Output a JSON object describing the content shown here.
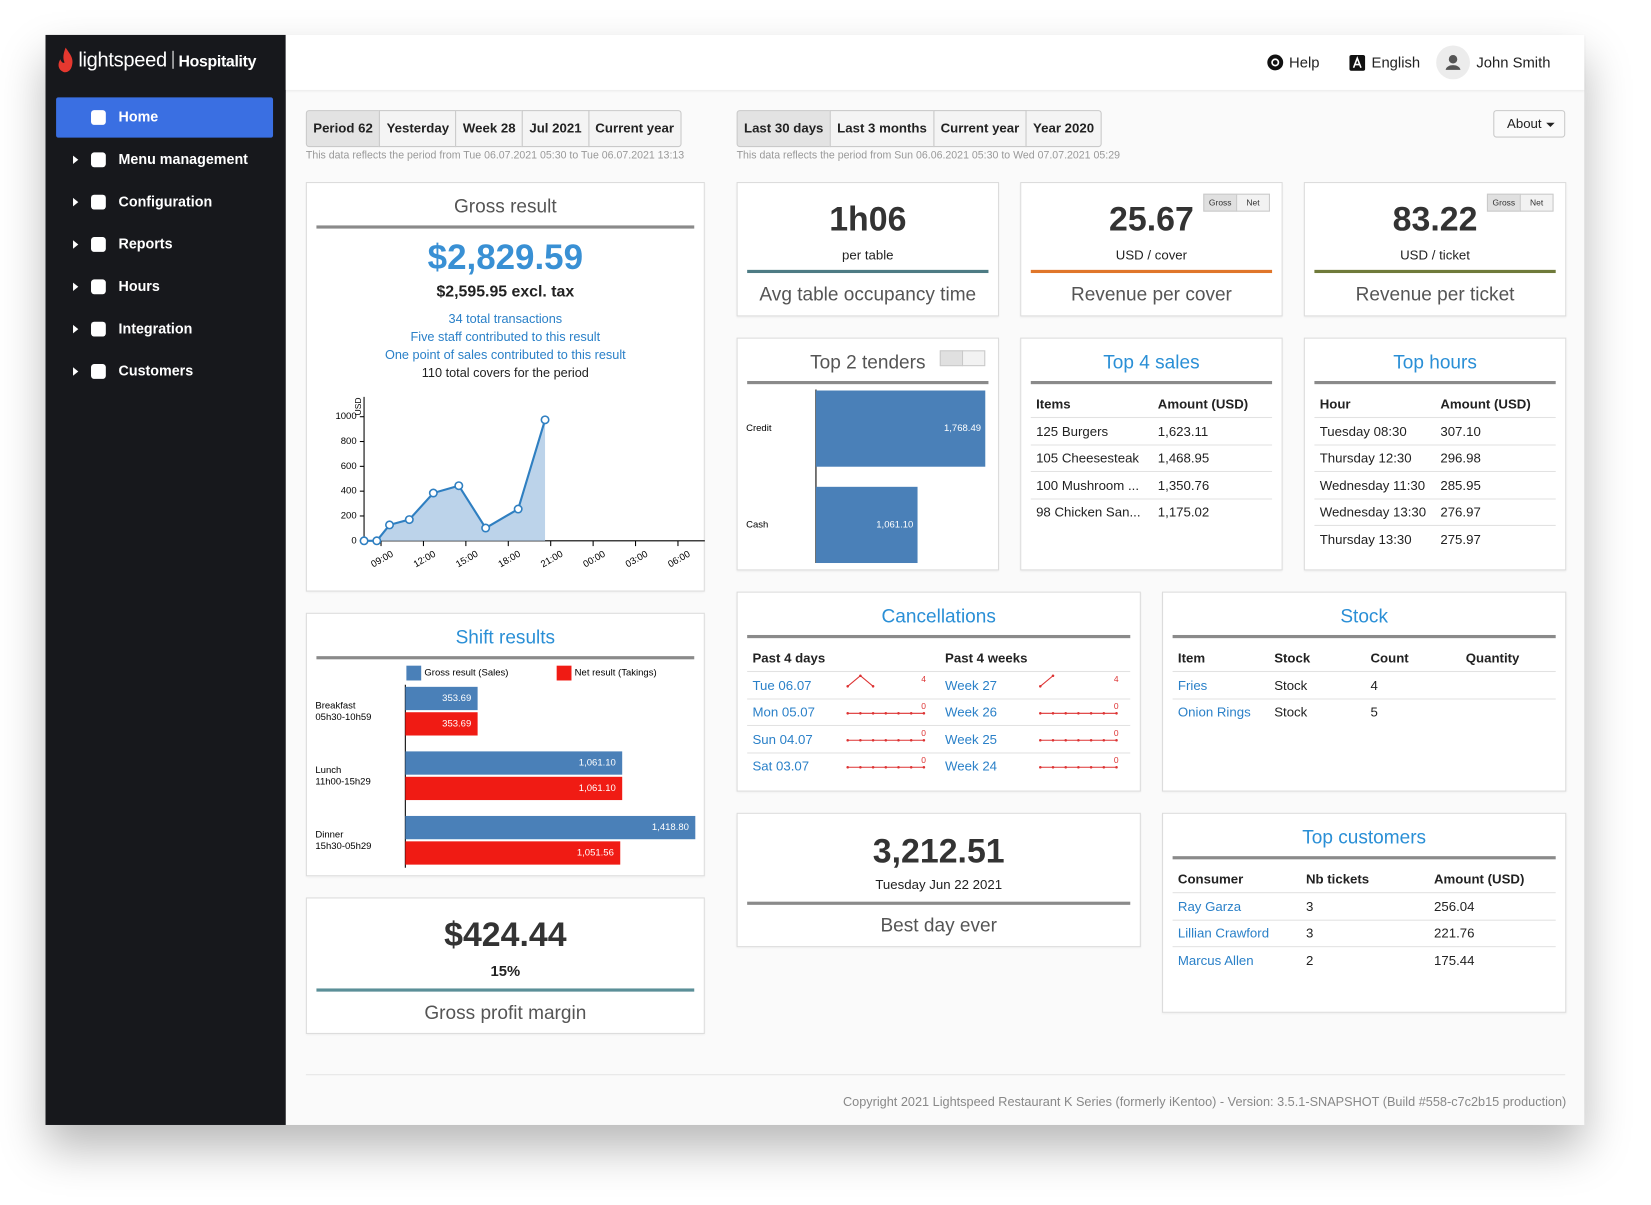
{
  "brand": {
    "name": "lightspeed",
    "product": "Hospitality"
  },
  "nav": [
    "Home",
    "Menu management",
    "Configuration",
    "Reports",
    "Hours",
    "Integration",
    "Customers"
  ],
  "header": {
    "help": "Help",
    "language": "English",
    "user": "John Smith"
  },
  "period_filter": {
    "options": [
      "Period 62",
      "Yesterday",
      "Week 28",
      "Jul 2021",
      "Current year"
    ],
    "note": "This data reflects the period from Tue 06.07.2021 05:30 to Tue 06.07.2021 13:13"
  },
  "range_filter": {
    "options": [
      "Last 30 days",
      "Last 3 months",
      "Current year",
      "Year 2020"
    ],
    "note": "This data reflects the period from Sun 06.06.2021 05:30 to Wed 07.07.2021 05:29"
  },
  "about": "About",
  "gross_result": {
    "title": "Gross result",
    "amount": "$2,829.59",
    "excl_tax": "$2,595.95 excl. tax",
    "details": [
      "34 total transactions",
      "Five staff contributed to this result",
      "One point of sales contributed to this result",
      "110 total covers for the period"
    ],
    "chart_data": {
      "type": "line",
      "y_label": "USD",
      "x": [
        7.8,
        8.7,
        9.6,
        11.0,
        12.7,
        14.5,
        16.4,
        18.7,
        20.6
      ],
      "values": [
        0,
        0,
        128,
        171,
        385,
        444,
        103,
        256,
        975
      ],
      "color": "#2f7fc1",
      "xlim": [
        7.8,
        31.9
      ],
      "xticks": [
        {
          "value": 9,
          "label": "09:00"
        },
        {
          "value": 12,
          "label": "12:00"
        },
        {
          "value": 15,
          "label": "15:00"
        },
        {
          "value": 18,
          "label": "18:00"
        },
        {
          "value": 21,
          "label": "21:00"
        },
        {
          "value": 24,
          "label": "00:00"
        },
        {
          "value": 27,
          "label": "03:00"
        },
        {
          "value": 30,
          "label": "06:00"
        }
      ],
      "ylim": [
        0,
        1160
      ],
      "yticks": [
        0,
        200,
        400,
        600,
        800,
        1000
      ]
    }
  },
  "shift_results": {
    "title": "Shift results",
    "chart_data": {
      "type": "bar",
      "orientation": "horizontal",
      "categories": [
        "Breakfast",
        "Lunch",
        "Dinner"
      ],
      "category_hours": [
        "05h30-10h59",
        "11h00-15h29",
        "15h30-05h29"
      ],
      "series": [
        {
          "name": "Gross result (Sales)",
          "color": "#4a80b8",
          "values": [
            353.69,
            1061.1,
            1418.8
          ],
          "value_labels": [
            "353.69",
            "1,061.10",
            "1,418.80"
          ]
        },
        {
          "name": "Net result (Takings)",
          "color": "#f01b14",
          "values": [
            353.69,
            1061.1,
            1051.56
          ],
          "value_labels": [
            "353.69",
            "1,061.10",
            "1,051.56"
          ]
        }
      ],
      "xlim": [
        0,
        1418.8
      ]
    }
  },
  "gross_profit_margin": {
    "amount": "$424.44",
    "percent": "15%",
    "label": "Gross profit margin"
  },
  "avg_table_occupancy": {
    "value": "1h06",
    "unit": "per table",
    "label": "Avg table occupancy time"
  },
  "revenue_per_cover": {
    "value": "25.67",
    "unit": "USD / cover",
    "label": "Revenue per cover",
    "toggle": [
      "Gross",
      "Net"
    ]
  },
  "revenue_per_ticket": {
    "value": "83.22",
    "unit": "USD / ticket",
    "label": "Revenue per ticket",
    "toggle": [
      "Gross",
      "Net"
    ]
  },
  "top_tenders": {
    "title": "Top 2 tenders",
    "chart_data": {
      "type": "bar",
      "orientation": "horizontal",
      "categories": [
        "Credit",
        "Cash"
      ],
      "values": [
        1768.49,
        1061.1
      ],
      "value_labels": [
        "1,768.49",
        "1,061.10"
      ],
      "color": "#4a80b8",
      "xlim": [
        0,
        1768.49
      ]
    }
  },
  "top_sales": {
    "title": "Top 4 sales",
    "header": [
      "Items",
      "Amount (USD)"
    ],
    "rows": [
      [
        "125 Burgers",
        "1,623.11"
      ],
      [
        "105 Cheesesteak",
        "1,468.95"
      ],
      [
        "100 Mushroom ...",
        "1,350.76"
      ],
      [
        "98 Chicken San...",
        "1,175.02"
      ]
    ]
  },
  "top_hours": {
    "title": "Top hours",
    "header": [
      "Hour",
      "Amount (USD)"
    ],
    "rows": [
      [
        "Tuesday 08:30",
        "307.10"
      ],
      [
        "Thursday 12:30",
        "296.98"
      ],
      [
        "Wednesday 11:30",
        "285.95"
      ],
      [
        "Wednesday 13:30",
        "276.97"
      ],
      [
        "Thursday 13:30",
        "275.97"
      ]
    ]
  },
  "cancellations": {
    "title": "Cancellations",
    "header": [
      "Past 4 days",
      "Past 4 weeks"
    ],
    "days": [
      {
        "label": "Tue 06.07",
        "max": 4,
        "trend": [
          0,
          4,
          0
        ]
      },
      {
        "label": "Mon 05.07",
        "max": 0,
        "trend": [
          0,
          0,
          0,
          0,
          0,
          0,
          0
        ]
      },
      {
        "label": "Sun 04.07",
        "max": 0,
        "trend": [
          0,
          0,
          0,
          0,
          0,
          0,
          0
        ]
      },
      {
        "label": "Sat 03.07",
        "max": 0,
        "trend": [
          0,
          0,
          0,
          0,
          0,
          0,
          0
        ]
      }
    ],
    "weeks": [
      {
        "label": "Week 27",
        "max": 4,
        "trend": [
          0,
          4
        ]
      },
      {
        "label": "Week 26",
        "max": 0,
        "trend": [
          0,
          0,
          0,
          0,
          0,
          0,
          0
        ]
      },
      {
        "label": "Week 25",
        "max": 0,
        "trend": [
          0,
          0,
          0,
          0,
          0,
          0,
          0
        ]
      },
      {
        "label": "Week 24",
        "max": 0,
        "trend": [
          0,
          0,
          0,
          0,
          0,
          0,
          0
        ]
      }
    ]
  },
  "stock": {
    "title": "Stock",
    "header": [
      "Item",
      "Stock",
      "Count",
      "Quantity"
    ],
    "rows": [
      [
        "Fries",
        "Stock",
        4
      ],
      [
        "Onion Rings",
        "Stock",
        5
      ]
    ]
  },
  "best_day": {
    "value": "3,212.51",
    "date": "Tuesday Jun 22 2021",
    "label": "Best day ever"
  },
  "top_customers": {
    "title": "Top customers",
    "header": [
      "Consumer",
      "Nb tickets",
      "Amount (USD)"
    ],
    "rows": [
      [
        "Ray Garza",
        "3",
        "256.04"
      ],
      [
        "Lillian Crawford",
        "3",
        "221.76"
      ],
      [
        "Marcus Allen",
        "2",
        "175.44"
      ]
    ]
  },
  "footer": "Copyright 2021 Lightspeed Restaurant K Series (formerly iKentoo) - Version: 3.5.1-SNAPSHOT (Build #558-c7c2b15 production)"
}
